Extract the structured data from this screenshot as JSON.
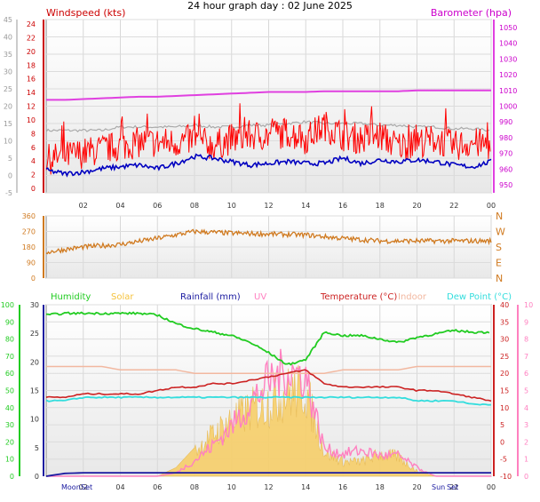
{
  "title": "24 hour graph day : 02 June 2025",
  "x_tick_labels": [
    "02",
    "04",
    "06",
    "08",
    "10",
    "12",
    "14",
    "16",
    "18",
    "20",
    "22",
    "00"
  ],
  "colors": {
    "windspeed": "#ff0000",
    "wind_avg": "#0000c0",
    "barometer": "#e040e0",
    "baro_title": "#cc00cc",
    "wind_title": "#cc0000",
    "direction": "#d07a20",
    "humidity": "#22cc22",
    "solar": "#f5c23c",
    "rainfall": "#1a1aa0",
    "uv": "#ff80c0",
    "temperature": "#cc2222",
    "indoor": "#f2b8a0",
    "dewpoint": "#33dddd",
    "gust_grey": "#aaaaaa"
  },
  "chart_data": [
    {
      "type": "line",
      "panel": "wind_baro",
      "title": "24 hour graph day : 02 June 2025",
      "left_axis_label": "Windspeed (kts)",
      "right_axis_label": "Barometer (hpa)",
      "left_ticks": [
        -5,
        0,
        5,
        10,
        15,
        20,
        25,
        30,
        35,
        40,
        45
      ],
      "ylim_left": [
        -5,
        45
      ],
      "wind_ticks": [
        0,
        2,
        4,
        6,
        8,
        10,
        12,
        14,
        16,
        18,
        20,
        22,
        24
      ],
      "baro_ticks": [
        950,
        960,
        970,
        980,
        990,
        1000,
        1010,
        1020,
        1030,
        1040,
        1050
      ],
      "ylim_baro": [
        945,
        1055
      ],
      "x_hours": [
        0,
        1,
        2,
        3,
        4,
        5,
        6,
        7,
        8,
        9,
        10,
        11,
        12,
        13,
        14,
        15,
        16,
        17,
        18,
        19,
        20,
        21,
        22,
        23,
        24
      ],
      "series": [
        {
          "key": "barometer",
          "values": [
            1004,
            1004,
            1004.5,
            1005,
            1005.5,
            1006,
            1006,
            1006.5,
            1007,
            1007.5,
            1008,
            1008.5,
            1009,
            1009,
            1009,
            1009.5,
            1009.5,
            1009.5,
            1009.5,
            1009.5,
            1010,
            1010,
            1010,
            1010,
            1010
          ]
        },
        {
          "key": "wind_gust",
          "values": [
            4,
            5,
            6,
            7,
            8,
            9,
            9,
            9,
            10,
            8,
            10,
            11,
            11,
            12,
            10,
            14,
            11,
            10,
            11,
            8,
            9,
            10,
            8,
            9,
            8
          ]
        },
        {
          "key": "wind_avg",
          "values": [
            1.5,
            0.5,
            1,
            2,
            2.5,
            3,
            2,
            3.5,
            5.5,
            5,
            4,
            3,
            3.5,
            4,
            3.5,
            3.5,
            5,
            3.5,
            4.5,
            4,
            4.5,
            4,
            3,
            2.5,
            4
          ]
        },
        {
          "key": "grey",
          "values": [
            13,
            13,
            13,
            13,
            14,
            14,
            14,
            14,
            14.5,
            14,
            14,
            14.5,
            14.5,
            15,
            15.5,
            15,
            15,
            15,
            14.5,
            14.5,
            14,
            14,
            13.5,
            13.5,
            13
          ]
        }
      ]
    },
    {
      "type": "line",
      "panel": "wind_direction",
      "left_ticks": [
        0,
        90,
        180,
        270,
        360
      ],
      "ylim": [
        0,
        360
      ],
      "compass_labels": [
        "N",
        "W",
        "S",
        "E",
        "N"
      ],
      "x_hours": [
        0,
        2,
        4,
        6,
        8,
        10,
        12,
        14,
        16,
        18,
        20,
        22,
        24
      ],
      "values": [
        150,
        180,
        195,
        230,
        270,
        260,
        255,
        250,
        230,
        215,
        215,
        215,
        215
      ]
    },
    {
      "type": "line",
      "panel": "temp_humidity",
      "legend": [
        "Humidity",
        "Solar",
        "Rainfall (mm)",
        "UV",
        "Temperature (°C)",
        "Indoor",
        "Dew Point (°C)"
      ],
      "humidity_ticks": [
        0,
        10,
        20,
        30,
        40,
        50,
        60,
        70,
        80,
        90,
        100
      ],
      "solar_ticks": [
        0,
        5,
        10,
        15,
        20,
        25,
        30
      ],
      "temp_ticks": [
        -10,
        -5,
        0,
        5,
        10,
        15,
        20,
        25,
        30,
        35,
        40
      ],
      "uv_ticks": [
        0,
        1,
        2,
        3,
        4,
        5,
        6,
        7,
        8,
        9,
        10
      ],
      "ylim_humidity": [
        0,
        100
      ],
      "ylim_temp": [
        -10,
        40
      ],
      "ylim_uv": [
        0,
        10
      ],
      "x_hours": [
        0,
        1,
        2,
        3,
        4,
        5,
        6,
        7,
        8,
        9,
        10,
        11,
        12,
        13,
        14,
        15,
        16,
        17,
        18,
        19,
        20,
        21,
        22,
        23,
        24
      ],
      "series": [
        {
          "key": "humidity",
          "values": [
            94,
            95,
            95,
            95,
            95,
            95,
            94,
            89,
            86,
            84,
            82,
            78,
            72,
            65,
            68,
            84,
            82,
            82,
            80,
            78,
            81,
            83,
            85,
            84,
            84
          ]
        },
        {
          "key": "temperature",
          "values": [
            13,
            13,
            14,
            14,
            14,
            14,
            15,
            16,
            16,
            17,
            17,
            18,
            19,
            20,
            21,
            17,
            16,
            16,
            16,
            16,
            15,
            15,
            14,
            13,
            12
          ]
        },
        {
          "key": "dewpoint",
          "values": [
            12,
            12,
            13,
            13,
            13,
            13,
            13,
            13,
            13,
            13,
            13,
            13,
            13,
            13,
            13,
            13,
            13,
            13,
            13,
            13,
            12,
            12,
            12,
            11,
            11
          ]
        },
        {
          "key": "indoor",
          "values": [
            22,
            22,
            22,
            22,
            21,
            21,
            21,
            21,
            20,
            20,
            20,
            20,
            20,
            20,
            20,
            20,
            21,
            21,
            21,
            21,
            22,
            22,
            22,
            22,
            22
          ]
        },
        {
          "key": "solar",
          "values": [
            0,
            0,
            0,
            0,
            0,
            0,
            0,
            1.5,
            5,
            8.5,
            11.5,
            13.5,
            15,
            17,
            17.5,
            5,
            3,
            3,
            4.5,
            4,
            1,
            0,
            0,
            0,
            0
          ]
        },
        {
          "key": "uv",
          "values": [
            0,
            0,
            0,
            0,
            0,
            0,
            0,
            0.2,
            0.9,
            1.8,
            2.9,
            4.2,
            5.5,
            6.2,
            5.8,
            1.6,
            1.3,
            1.5,
            1.2,
            1.2,
            0.5,
            0,
            0,
            0,
            0
          ]
        },
        {
          "key": "rainfall",
          "values": [
            0,
            0.5,
            0.6,
            0.6,
            0.6,
            0.6,
            0.6,
            0.6,
            0.6,
            0.6,
            0.6,
            0.6,
            0.6,
            0.6,
            0.6,
            0.6,
            0.6,
            0.6,
            0.6,
            0.6,
            0.6,
            0.6,
            0.6,
            0.6,
            0.6
          ]
        }
      ],
      "bottom_labels": [
        "Moon",
        "Set",
        "Sun",
        "Set"
      ]
    }
  ]
}
